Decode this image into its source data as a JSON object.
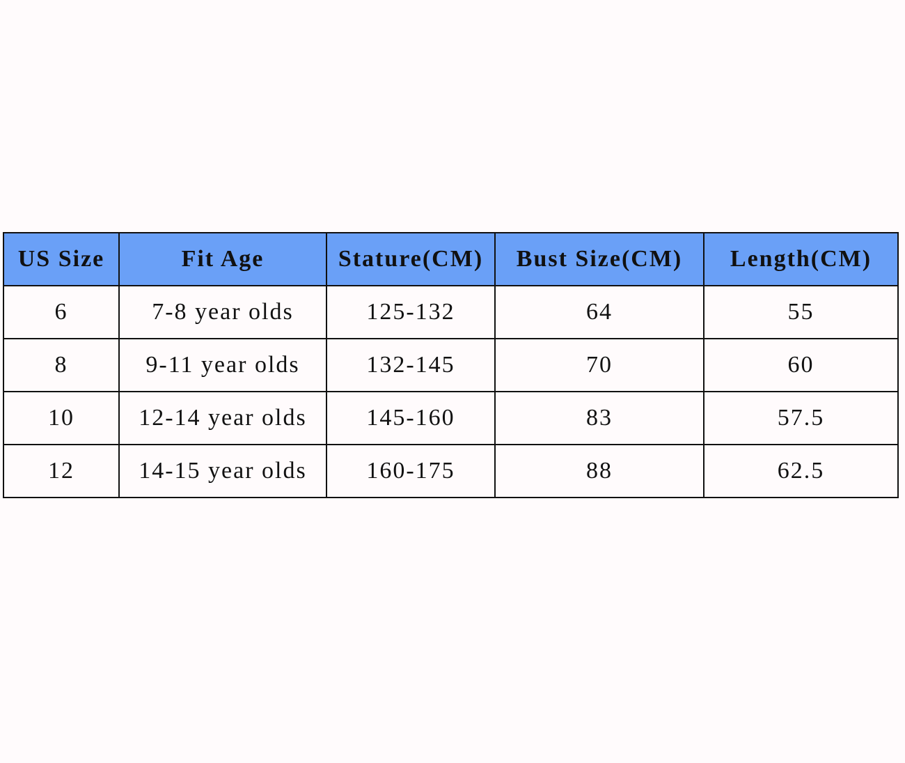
{
  "table": {
    "header": [
      "US Size",
      "Fit Age",
      "Stature(CM)",
      "Bust Size(CM)",
      "Length(CM)"
    ],
    "rows": [
      [
        "6",
        "7-8 year olds",
        "125-132",
        "64",
        "55"
      ],
      [
        "8",
        "9-11 year olds",
        "132-145",
        "70",
        "60"
      ],
      [
        "10",
        "12-14 year olds",
        "145-160",
        "83",
        "57.5"
      ],
      [
        "12",
        "14-15 year olds",
        "160-175",
        "88",
        "62.5"
      ]
    ]
  }
}
